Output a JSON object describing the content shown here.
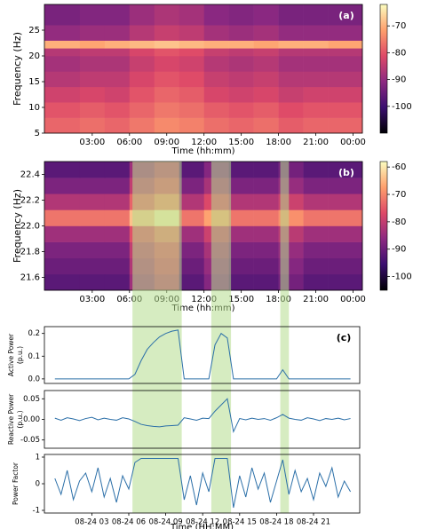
{
  "chart_data": [
    {
      "type": "heatmap",
      "annotation": "(a)",
      "xlabel": "Time (hh:mm)",
      "ylabel": "Frequency (Hz)",
      "xlim": [
        -0.85,
        24.75
      ],
      "ylim": [
        5,
        30
      ],
      "xticks": [
        {
          "value": 3,
          "label": "03:00"
        },
        {
          "value": 6,
          "label": "06:00"
        },
        {
          "value": 9,
          "label": "09:00"
        },
        {
          "value": 12,
          "label": "12:00"
        },
        {
          "value": 15,
          "label": "15:00"
        },
        {
          "value": 18,
          "label": "18:00"
        },
        {
          "value": 21,
          "label": "21:00"
        },
        {
          "value": 24,
          "label": "00:00"
        }
      ],
      "yticks": [
        5,
        10,
        15,
        20,
        25
      ],
      "x_edges": [
        -0.85,
        2,
        4,
        6,
        8,
        10,
        12,
        14,
        16,
        18,
        20,
        22,
        24.75
      ],
      "y_edges": [
        5,
        8,
        11,
        14,
        17,
        20,
        21.5,
        23,
        26,
        30
      ],
      "z": [
        [
          -78,
          -77,
          -78,
          -76,
          -74,
          -75,
          -77,
          -78,
          -77,
          -79,
          -78,
          -78
        ],
        [
          -80,
          -79,
          -80,
          -78,
          -76,
          -77,
          -79,
          -80,
          -79,
          -81,
          -80,
          -80
        ],
        [
          -83,
          -82,
          -83,
          -80,
          -78,
          -79,
          -82,
          -83,
          -82,
          -84,
          -83,
          -83
        ],
        [
          -86,
          -85,
          -85,
          -82,
          -80,
          -81,
          -84,
          -85,
          -84,
          -86,
          -86,
          -86
        ],
        [
          -88,
          -87,
          -87,
          -84,
          -82,
          -83,
          -86,
          -87,
          -86,
          -88,
          -88,
          -88
        ],
        [
          -86,
          -85,
          -85,
          -82,
          -80,
          -81,
          -84,
          -85,
          -84,
          -86,
          -86,
          -86
        ],
        [
          -70,
          -71,
          -70,
          -69,
          -68,
          -69,
          -70,
          -70,
          -71,
          -70,
          -70,
          -71
        ],
        [
          -90,
          -89,
          -89,
          -86,
          -84,
          -85,
          -88,
          -89,
          -88,
          -90,
          -90,
          -90
        ],
        [
          -93,
          -92,
          -92,
          -89,
          -87,
          -88,
          -91,
          -92,
          -91,
          -93,
          -93,
          -93
        ]
      ],
      "colorbar": {
        "lim": [
          -110,
          -62
        ],
        "ticks": [
          -70,
          -80,
          -90,
          -100
        ]
      },
      "colormap": [
        "#000004",
        "#3b0f70",
        "#8c2981",
        "#de4968",
        "#fe9f6d",
        "#fcfdbf"
      ]
    },
    {
      "type": "heatmap",
      "annotation": "(b)",
      "xlabel": "Time (hh:mm)",
      "ylabel": "Frequency (Hz)",
      "xlim": [
        -0.85,
        24.75
      ],
      "ylim": [
        21.5,
        22.5
      ],
      "xticks": [
        {
          "value": 3,
          "label": "03:00"
        },
        {
          "value": 6,
          "label": "06:00"
        },
        {
          "value": 9,
          "label": "09:00"
        },
        {
          "value": 12,
          "label": "12:00"
        },
        {
          "value": 15,
          "label": "15:00"
        },
        {
          "value": 18,
          "label": "18:00"
        },
        {
          "value": 21,
          "label": "21:00"
        },
        {
          "value": 24,
          "label": "00:00"
        }
      ],
      "yticks": [
        21.6,
        21.8,
        {
          "value": 22,
          "label": "22.0"
        },
        22.2,
        22.4
      ],
      "x_edges": [
        -0.85,
        2,
        4,
        6,
        8,
        10,
        12,
        14,
        16,
        18,
        20,
        22,
        24.75
      ],
      "y_edges": [
        21.5,
        21.625,
        21.75,
        21.875,
        22,
        22.125,
        22.25,
        22.375,
        22.5
      ],
      "z": [
        [
          -92,
          -92,
          -92,
          -84,
          -80,
          -92,
          -87,
          -92,
          -92,
          -89,
          -92,
          -92
        ],
        [
          -90,
          -90,
          -90,
          -82,
          -78,
          -90,
          -85,
          -90,
          -90,
          -87,
          -90,
          -90
        ],
        [
          -88,
          -88,
          -88,
          -80,
          -76,
          -88,
          -83,
          -88,
          -88,
          -85,
          -88,
          -88
        ],
        [
          -84,
          -84,
          -84,
          -76,
          -72,
          -84,
          -79,
          -84,
          -84,
          -81,
          -84,
          -84
        ],
        [
          -72,
          -72,
          -72,
          -64,
          -60,
          -72,
          -67,
          -72,
          -72,
          -69,
          -72,
          -72
        ],
        [
          -82,
          -82,
          -82,
          -74,
          -70,
          -82,
          -77,
          -82,
          -82,
          -79,
          -82,
          -82
        ],
        [
          -88,
          -88,
          -88,
          -80,
          -76,
          -88,
          -83,
          -88,
          -88,
          -85,
          -88,
          -88
        ],
        [
          -92,
          -92,
          -92,
          -84,
          -80,
          -92,
          -87,
          -92,
          -92,
          -89,
          -92,
          -92
        ]
      ],
      "colorbar": {
        "lim": [
          -105,
          -58
        ],
        "ticks": [
          -60,
          -70,
          -80,
          -90,
          -100
        ]
      },
      "colormap": [
        "#000004",
        "#3b0f70",
        "#8c2981",
        "#de4968",
        "#fe9f6d",
        "#fcfdbf"
      ]
    },
    {
      "type": "line",
      "annotation": "(c)",
      "ylabel": [
        "Active Power",
        "(p.u.)"
      ],
      "xlim": [
        -0.85,
        24.75
      ],
      "ylim": [
        -0.02,
        0.23
      ],
      "yticks": [
        {
          "value": 0,
          "label": "0.0"
        },
        0.1,
        0.2
      ],
      "x": [
        0,
        0.5,
        1,
        1.5,
        2,
        2.5,
        3,
        3.5,
        4,
        4.5,
        5,
        5.5,
        6,
        6.5,
        7,
        7.5,
        8,
        8.5,
        9,
        9.5,
        10,
        10.5,
        11,
        11.5,
        12,
        12.5,
        13,
        13.5,
        14,
        14.5,
        15,
        15.5,
        16,
        16.5,
        17,
        17.5,
        18,
        18.5,
        19,
        19.5,
        20,
        20.5,
        21,
        21.5,
        22,
        22.5,
        23,
        23.5,
        24
      ],
      "series": [
        {
          "color": "#2b6fa8",
          "values": [
            0,
            0,
            0,
            0,
            0,
            0,
            0,
            0,
            0,
            0,
            0,
            0,
            0,
            0.02,
            0.08,
            0.13,
            0.16,
            0.185,
            0.2,
            0.21,
            0.215,
            0,
            0,
            0,
            0,
            0,
            0.15,
            0.2,
            0.18,
            0,
            0,
            0,
            0,
            0,
            0,
            0,
            0,
            0.04,
            0,
            0,
            0,
            0,
            0,
            0,
            0,
            0,
            0,
            0,
            0
          ]
        }
      ]
    },
    {
      "type": "line",
      "ylabel": [
        "Reactive Power",
        "(p.u.)"
      ],
      "xlim": [
        -0.85,
        24.75
      ],
      "ylim": [
        -0.07,
        0.07
      ],
      "yticks": [
        -0.05,
        {
          "value": 0,
          "label": "0.00"
        },
        0.05
      ],
      "x": [
        0,
        0.5,
        1,
        1.5,
        2,
        2.5,
        3,
        3.5,
        4,
        4.5,
        5,
        5.5,
        6,
        6.5,
        7,
        7.5,
        8,
        8.5,
        9,
        9.5,
        10,
        10.5,
        11,
        11.5,
        12,
        12.5,
        13,
        13.5,
        14,
        14.5,
        15,
        15.5,
        16,
        16.5,
        17,
        17.5,
        18,
        18.5,
        19,
        19.5,
        20,
        20.5,
        21,
        21.5,
        22,
        22.5,
        23,
        23.5,
        24
      ],
      "series": [
        {
          "color": "#2b6fa8",
          "values": [
            0.003,
            -0.002,
            0.004,
            0.001,
            -0.003,
            0.002,
            0.005,
            -0.001,
            0.003,
            0,
            -0.002,
            0.004,
            0.001,
            -0.005,
            -0.012,
            -0.015,
            -0.017,
            -0.018,
            -0.016,
            -0.015,
            -0.014,
            0.004,
            0.001,
            -0.002,
            0.003,
            0.002,
            0.02,
            0.035,
            0.05,
            -0.03,
            0.002,
            -0.001,
            0.003,
            0,
            0.002,
            -0.002,
            0.004,
            0.012,
            0.003,
            0,
            -0.002,
            0.004,
            0.001,
            -0.003,
            0.002,
            0,
            0.003,
            -0.001,
            0.002
          ]
        }
      ]
    },
    {
      "type": "line",
      "ylabel": [
        "Power Factor"
      ],
      "xlabel": "Time (HH:MM)",
      "xlim": [
        -0.85,
        24.75
      ],
      "ylim": [
        -1.1,
        1.1
      ],
      "yticks": [
        -1,
        0,
        1
      ],
      "xticks": [
        {
          "value": 3,
          "label": "08-24 03"
        },
        {
          "value": 6,
          "label": "08-24 06"
        },
        {
          "value": 9,
          "label": "08-24 09"
        },
        {
          "value": 12,
          "label": "08-24 12"
        },
        {
          "value": 15,
          "label": "08-24 15"
        },
        {
          "value": 18,
          "label": "08-24 18"
        },
        {
          "value": 21,
          "label": "08-24 21"
        }
      ],
      "x": [
        0,
        0.5,
        1,
        1.5,
        2,
        2.5,
        3,
        3.5,
        4,
        4.5,
        5,
        5.5,
        6,
        6.5,
        7,
        7.5,
        8,
        8.5,
        9,
        9.5,
        10,
        10.5,
        11,
        11.5,
        12,
        12.5,
        13,
        13.5,
        14,
        14.5,
        15,
        15.5,
        16,
        16.5,
        17,
        17.5,
        18,
        18.5,
        19,
        19.5,
        20,
        20.5,
        21,
        21.5,
        22,
        22.5,
        23,
        23.5,
        24
      ],
      "series": [
        {
          "color": "#2b6fa8",
          "values": [
            0.2,
            -0.4,
            0.5,
            -0.6,
            0.1,
            0.4,
            -0.3,
            0.6,
            -0.5,
            0.2,
            -0.7,
            0.3,
            -0.2,
            0.8,
            0.95,
            0.95,
            0.95,
            0.95,
            0.95,
            0.95,
            0.95,
            -0.6,
            0.3,
            -0.8,
            0.4,
            -0.3,
            0.95,
            0.95,
            0.95,
            -0.9,
            0.3,
            -0.5,
            0.6,
            -0.2,
            0.4,
            -0.7,
            0.1,
            0.9,
            -0.4,
            0.5,
            -0.3,
            0.2,
            -0.6,
            0.4,
            -0.1,
            0.6,
            -0.5,
            0.1,
            -0.3
          ]
        }
      ]
    }
  ],
  "highlights": [
    [
      6.3,
      10.3
    ],
    [
      12.7,
      14.3
    ],
    [
      18.3,
      19.0
    ]
  ],
  "highlight_color": "#b5dc8e"
}
